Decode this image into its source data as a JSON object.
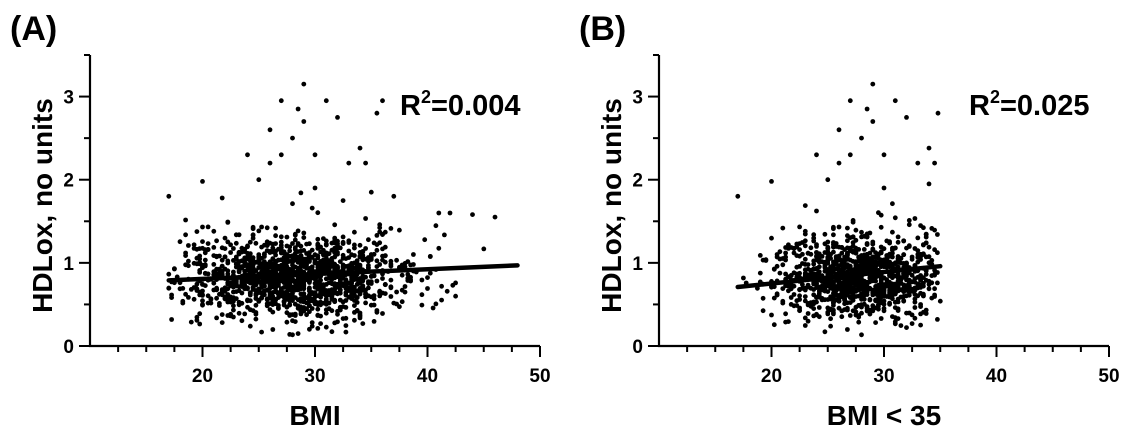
{
  "chart_data": [
    {
      "type": "scatter",
      "panel_label": "(A)",
      "xlabel": "BMI",
      "ylabel": "HDLox, no units",
      "xlim": [
        10,
        50
      ],
      "ylim": [
        0,
        3.5
      ],
      "xticks": [
        20,
        30,
        40,
        50
      ],
      "yticks": [
        0,
        1,
        2,
        3
      ],
      "annotation": {
        "base": "R",
        "sup": "2",
        "rest": "=0.004"
      },
      "r_squared": 0.004,
      "fit_line": {
        "x": [
          17,
          48
        ],
        "y": [
          0.79,
          0.97
        ]
      },
      "points_summary": {
        "n_approx": 1400,
        "x_range": [
          17,
          48
        ],
        "y_range": [
          0.1,
          3.15
        ],
        "x_center": 28,
        "y_center": 0.8
      },
      "outliers": [
        [
          17,
          1.8
        ],
        [
          20,
          1.98
        ],
        [
          24,
          2.3
        ],
        [
          25,
          2.0
        ],
        [
          26,
          2.6
        ],
        [
          27,
          2.95
        ],
        [
          28,
          2.5
        ],
        [
          28.5,
          2.85
        ],
        [
          29,
          3.15
        ],
        [
          29,
          2.7
        ],
        [
          30,
          2.3
        ],
        [
          31,
          2.95
        ],
        [
          32,
          2.75
        ],
        [
          33,
          2.2
        ],
        [
          34,
          2.38
        ],
        [
          34.5,
          2.2
        ],
        [
          35,
          1.85
        ],
        [
          35.5,
          2.8
        ],
        [
          36,
          2.95
        ],
        [
          27,
          2.3
        ],
        [
          26,
          2.2
        ],
        [
          30,
          1.9
        ],
        [
          41,
          1.6
        ],
        [
          42,
          1.6
        ],
        [
          44,
          1.58
        ],
        [
          46,
          1.55
        ],
        [
          37,
          1.8
        ]
      ]
    },
    {
      "type": "scatter",
      "panel_label": "(B)",
      "xlabel": "BMI < 35",
      "ylabel": "HDLox, no units",
      "xlim": [
        10,
        50
      ],
      "ylim": [
        0,
        3.5
      ],
      "xticks": [
        20,
        30,
        40,
        50
      ],
      "yticks": [
        0,
        1,
        2,
        3
      ],
      "annotation": {
        "base": "R",
        "sup": "2",
        "rest": "=0.025"
      },
      "r_squared": 0.025,
      "fit_line": {
        "x": [
          17,
          35
        ],
        "y": [
          0.71,
          0.96
        ]
      },
      "points_summary": {
        "n_approx": 1150,
        "x_range": [
          17,
          35
        ],
        "y_range": [
          0.1,
          3.15
        ],
        "x_center": 28,
        "y_center": 0.8
      },
      "outliers": [
        [
          17,
          1.8
        ],
        [
          20,
          1.98
        ],
        [
          24,
          2.3
        ],
        [
          25,
          2.0
        ],
        [
          26,
          2.6
        ],
        [
          27,
          2.95
        ],
        [
          28,
          2.5
        ],
        [
          28.5,
          2.85
        ],
        [
          29,
          3.15
        ],
        [
          29,
          2.7
        ],
        [
          30,
          2.3
        ],
        [
          31,
          2.95
        ],
        [
          32,
          2.75
        ],
        [
          33,
          2.2
        ],
        [
          34,
          2.38
        ],
        [
          34.5,
          2.2
        ],
        [
          34.8,
          2.8
        ],
        [
          27,
          2.3
        ],
        [
          26,
          2.2
        ],
        [
          30,
          1.9
        ],
        [
          34,
          1.95
        ]
      ]
    }
  ]
}
